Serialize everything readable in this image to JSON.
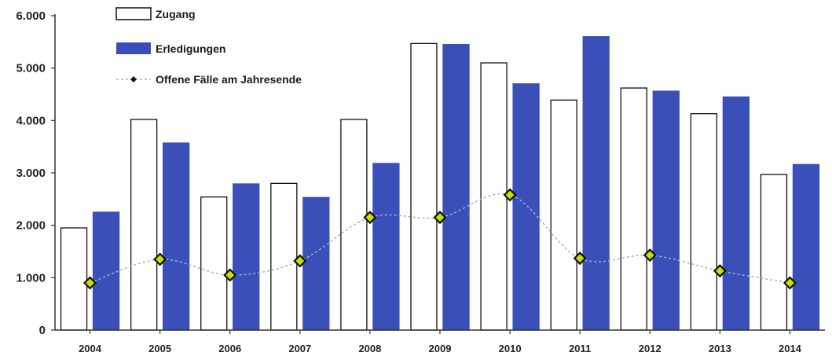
{
  "chart_data": {
    "type": "bar",
    "categories": [
      "2004",
      "2005",
      "2006",
      "2007",
      "2008",
      "2009",
      "2010",
      "2011",
      "2012",
      "2013",
      "2014"
    ],
    "series": [
      {
        "name": "Zugang",
        "type": "bar",
        "fill": "#ffffff",
        "stroke": "#111111",
        "values": [
          1950,
          4020,
          2540,
          2800,
          4020,
          5470,
          5100,
          4390,
          4620,
          4130,
          2970
        ]
      },
      {
        "name": "Erledigungen",
        "type": "bar",
        "fill": "#3a4fb8",
        "stroke": "#3a4fb8",
        "values": [
          2250,
          3570,
          2790,
          2530,
          3180,
          5450,
          4700,
          5600,
          4560,
          4450,
          3160
        ]
      },
      {
        "name": "Offene Fälle am Jahresende",
        "type": "line",
        "line_color": "#9fb4c4",
        "marker_color": "#c8e000",
        "values": [
          900,
          1350,
          1050,
          1320,
          2150,
          2150,
          2580,
          1370,
          1430,
          1130,
          900
        ]
      }
    ],
    "y_ticks": [
      "0",
      "1.000",
      "2.000",
      "3.000",
      "4.000",
      "5.000",
      "6.000"
    ],
    "ylim": [
      0,
      6000
    ],
    "legend_position": "top-left",
    "grid": false
  }
}
